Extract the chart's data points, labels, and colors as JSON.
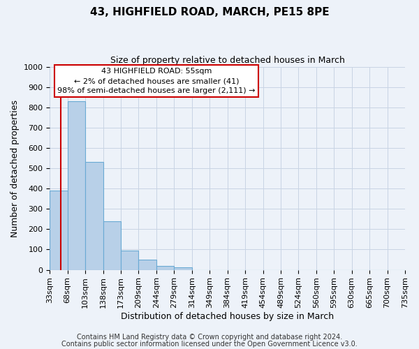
{
  "title": "43, HIGHFIELD ROAD, MARCH, PE15 8PE",
  "subtitle": "Size of property relative to detached houses in March",
  "xlabel": "Distribution of detached houses by size in March",
  "ylabel": "Number of detached properties",
  "bin_labels": [
    "33sqm",
    "68sqm",
    "103sqm",
    "138sqm",
    "173sqm",
    "209sqm",
    "244sqm",
    "279sqm",
    "314sqm",
    "349sqm",
    "384sqm",
    "419sqm",
    "454sqm",
    "489sqm",
    "524sqm",
    "560sqm",
    "595sqm",
    "630sqm",
    "665sqm",
    "700sqm",
    "735sqm"
  ],
  "bar_heights": [
    390,
    830,
    530,
    240,
    95,
    50,
    20,
    12,
    0,
    0,
    0,
    0,
    0,
    0,
    0,
    0,
    0,
    0,
    0,
    0
  ],
  "bar_color": "#b8d0e8",
  "bar_edge_color": "#6aaad4",
  "ylim": [
    0,
    1000
  ],
  "yticks": [
    0,
    100,
    200,
    300,
    400,
    500,
    600,
    700,
    800,
    900,
    1000
  ],
  "annotation_title": "43 HIGHFIELD ROAD: 55sqm",
  "annotation_line1": "← 2% of detached houses are smaller (41)",
  "annotation_line2": "98% of semi-detached houses are larger (2,111) →",
  "annotation_box_facecolor": "#ffffff",
  "annotation_box_edgecolor": "#cc0000",
  "grid_color": "#c8d4e4",
  "footer1": "Contains HM Land Registry data © Crown copyright and database right 2024.",
  "footer2": "Contains public sector information licensed under the Open Government Licence v3.0.",
  "red_line_color": "#cc0000",
  "background_color": "#edf2f9",
  "title_fontsize": 11,
  "subtitle_fontsize": 9,
  "axis_label_fontsize": 9,
  "tick_fontsize": 8,
  "annotation_fontsize": 8,
  "footer_fontsize": 7
}
